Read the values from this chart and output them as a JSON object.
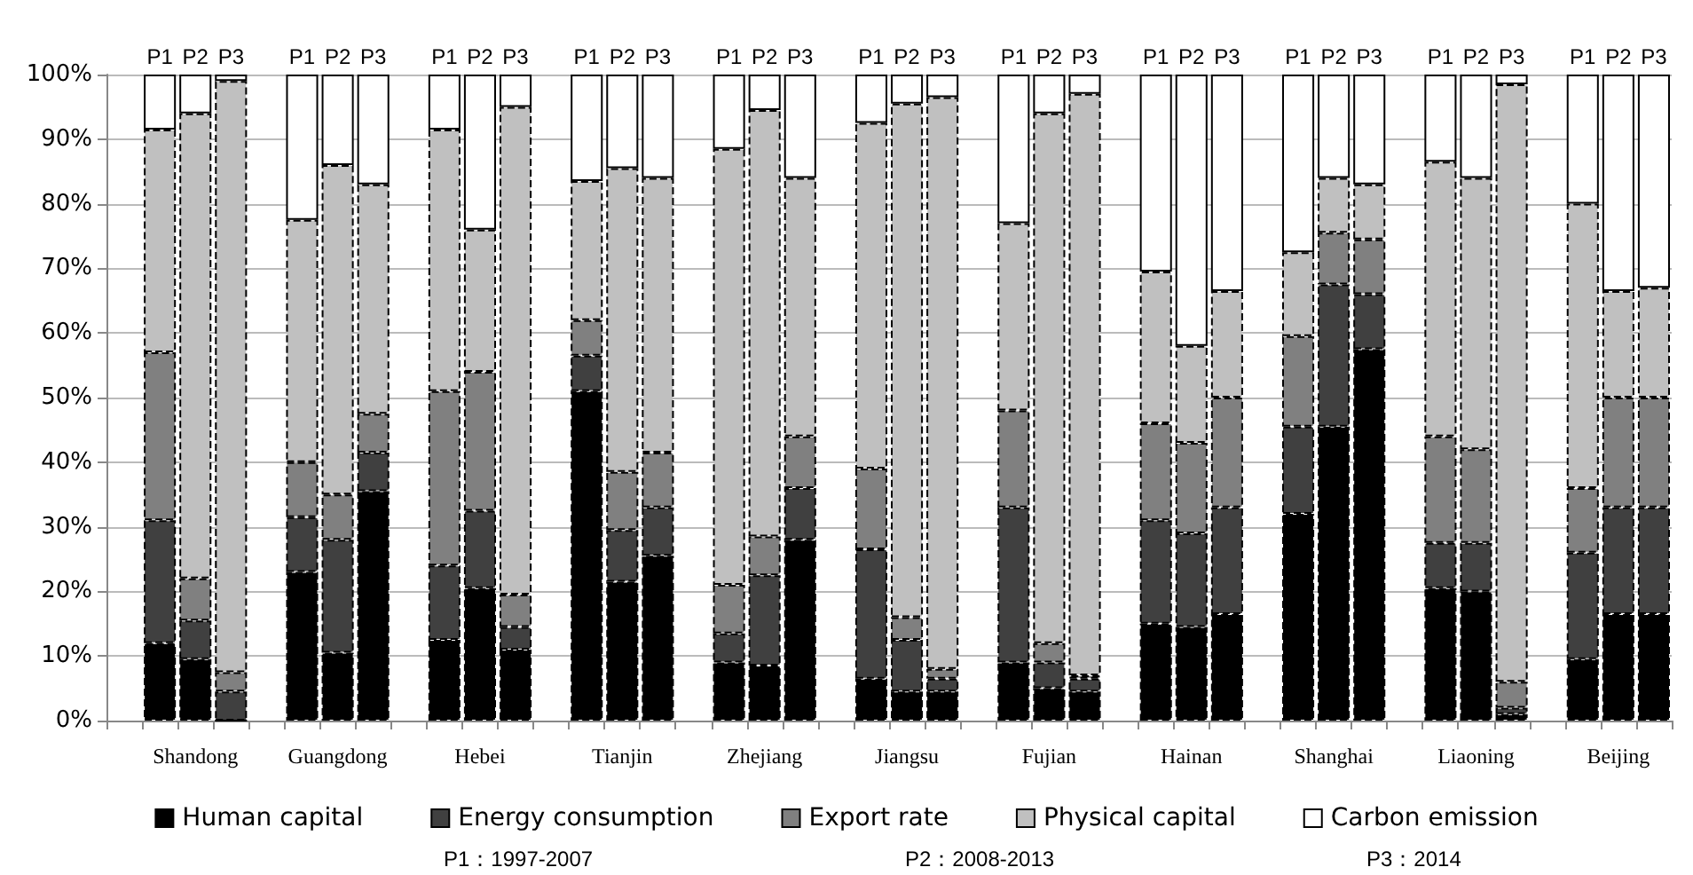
{
  "chart_data": {
    "type": "bar",
    "stacked": true,
    "categories": [
      "P1",
      "P2",
      "P3",
      "P1",
      "P2",
      "P3",
      "P1",
      "P2",
      "P3",
      "P1",
      "P2",
      "P3",
      "P1",
      "P2",
      "P3",
      "P1",
      "P2",
      "P3",
      "P1",
      "P2",
      "P3",
      "P1",
      "P2",
      "P3",
      "P1",
      "P2",
      "P3",
      "P1",
      "P2",
      "P3",
      "P1",
      "P2",
      "P3"
    ],
    "series": [
      {
        "name": "Human capital",
        "color": "#000000",
        "values": [
          12,
          9.5,
          0,
          23,
          10.5,
          35.5,
          12.5,
          20.5,
          11,
          51,
          21.5,
          25.5,
          9,
          8.5,
          28,
          6.5,
          4.5,
          4.5,
          9,
          5,
          4.5,
          15,
          14.5,
          16.5,
          32,
          45.5,
          57.5,
          20.5,
          20,
          1,
          9.5,
          16.5,
          16.5
        ]
      },
      {
        "name": "Energy consumption",
        "color": "#404040",
        "values": [
          19,
          6,
          4.5,
          8.5,
          17.5,
          6,
          11.5,
          12,
          3.5,
          5.5,
          8,
          7.5,
          4.5,
          14,
          8,
          20,
          8,
          2,
          24,
          4,
          2,
          16,
          14.5,
          16.5,
          13.5,
          22,
          8.5,
          7,
          7.5,
          1,
          16.5,
          16.5,
          16.5
        ]
      },
      {
        "name": "Export rate",
        "color": "#808080",
        "values": [
          26,
          6.5,
          3,
          8.5,
          7,
          6,
          27,
          21.5,
          5,
          5.5,
          9,
          8.5,
          7.5,
          6,
          8,
          12.5,
          3.5,
          1.5,
          15,
          3,
          0.5,
          15,
          14,
          17,
          14,
          8,
          8.5,
          16.5,
          14.5,
          4,
          10,
          17,
          17
        ]
      },
      {
        "name": "Physical capital",
        "color": "#c0c0c0",
        "values": [
          34.5,
          72,
          91.5,
          37.5,
          51,
          35.5,
          40.5,
          22,
          75.5,
          21.5,
          47,
          42.5,
          67.5,
          66,
          40,
          53.5,
          79.5,
          88.5,
          29,
          82,
          90,
          23.5,
          15,
          16.5,
          13,
          8.5,
          8.5,
          42.5,
          42,
          92.5,
          44,
          16.5,
          17
        ]
      },
      {
        "name": "Carbon emission",
        "color": "#ffffff",
        "values": [
          8.5,
          6,
          1,
          22.5,
          14,
          17,
          8.5,
          24,
          5,
          16.5,
          14.5,
          16,
          11.5,
          5.5,
          16,
          7.5,
          4.5,
          3.5,
          23,
          6,
          3,
          30.5,
          42,
          33.5,
          27.5,
          16,
          17,
          13.5,
          16,
          1.5,
          20,
          33.5,
          33
        ]
      }
    ],
    "ylim": [
      0,
      100
    ],
    "yticks": [
      {
        "value": 0,
        "label": "0%"
      },
      {
        "value": 10,
        "label": "10%"
      },
      {
        "value": 20,
        "label": "20%"
      },
      {
        "value": 30,
        "label": "30%"
      },
      {
        "value": 40,
        "label": "40%"
      },
      {
        "value": 50,
        "label": "50%"
      },
      {
        "value": 60,
        "label": "60%"
      },
      {
        "value": 70,
        "label": "70%"
      },
      {
        "value": 80,
        "label": "80%"
      },
      {
        "value": 90,
        "label": "90%"
      },
      {
        "value": 100,
        "label": "100%"
      }
    ],
    "grid": "y",
    "legend": "bottom",
    "annotations": [
      "Shandong",
      "Guangdong",
      "Hebei",
      "Tianjin",
      "Zhejiang",
      "Jiangsu",
      "Fujian",
      "Hainan",
      "Shanghai",
      "Liaoning",
      "Beijing",
      "P1：1997-2007",
      "P2：2008-2013",
      "P3：2014"
    ]
  }
}
